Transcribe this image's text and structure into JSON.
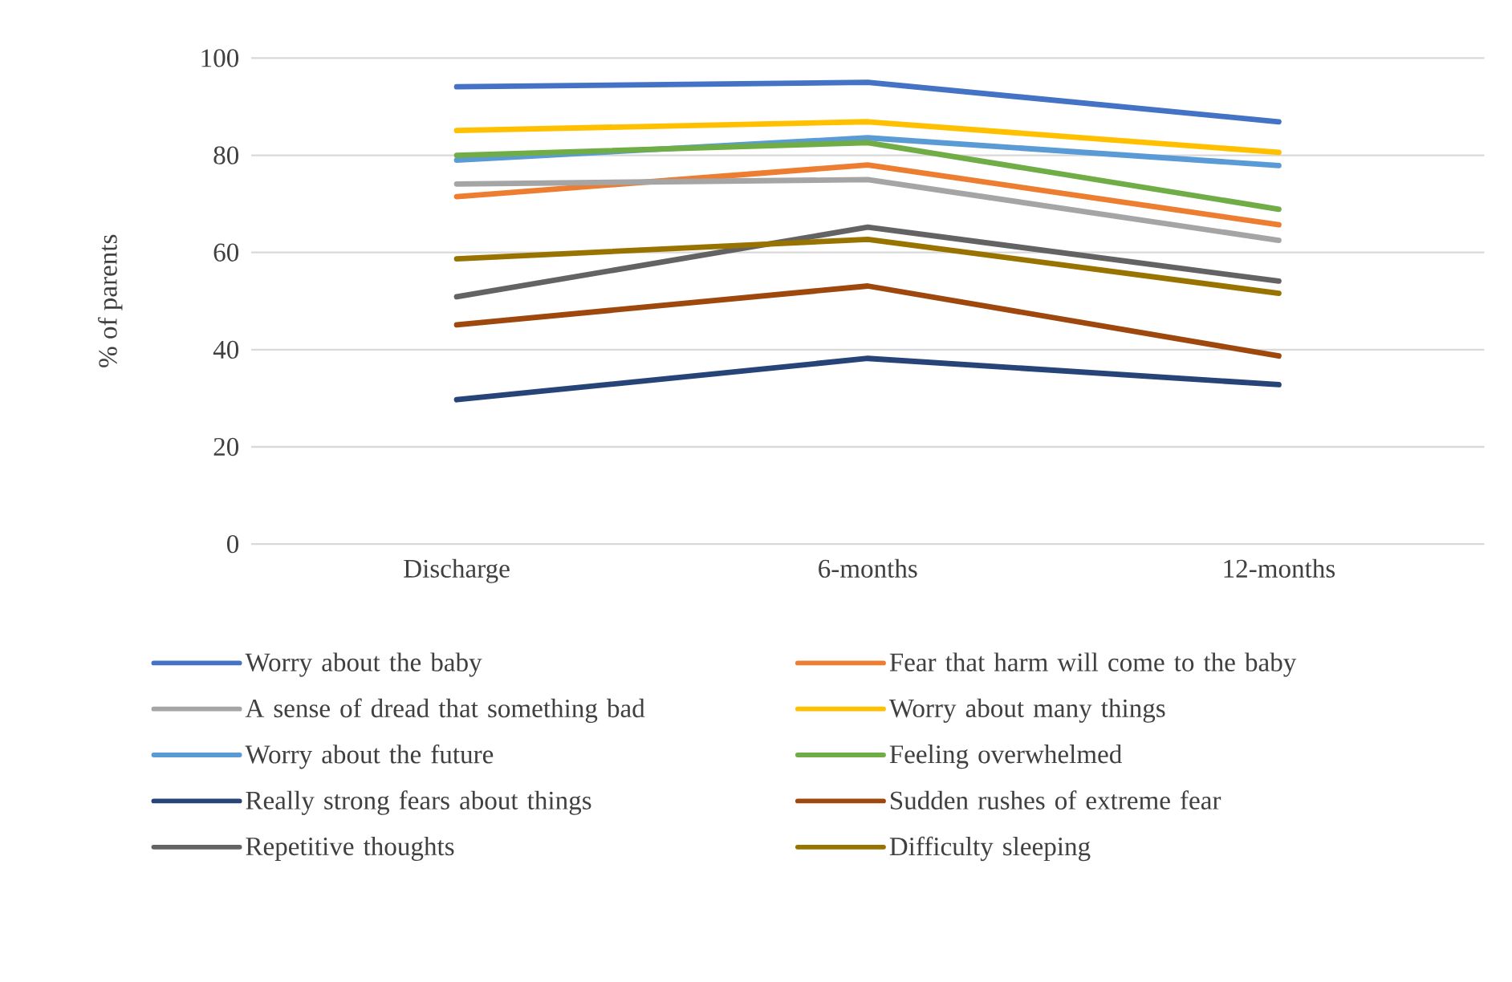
{
  "chart_data": {
    "type": "line",
    "ylabel": "% of parents",
    "categories": [
      "Discharge",
      "6-months",
      "12-months"
    ],
    "ylim": [
      0,
      100
    ],
    "yticks": [
      0,
      20,
      40,
      60,
      80,
      100
    ],
    "grid": "y",
    "legend": "bottom",
    "marker": "none",
    "line_style": "solid",
    "series": [
      {
        "name": "Worry about the baby",
        "color": "#4472c4",
        "values": [
          94.1,
          95,
          86.9
        ]
      },
      {
        "name": "Fear that harm will come to the baby",
        "color": "#ed7d31",
        "values": [
          71.5,
          78,
          65.7
        ]
      },
      {
        "name": "A sense of dread that something bad",
        "color": "#a5a5a5",
        "values": [
          74.1,
          75,
          62.5
        ]
      },
      {
        "name": "Worry about many things",
        "color": "#ffc000",
        "values": [
          85.1,
          86.9,
          80.6
        ]
      },
      {
        "name": "Worry about the future",
        "color": "#5b9bd5",
        "values": [
          79,
          83.6,
          77.9
        ]
      },
      {
        "name": "Feeling overwhelmed",
        "color": "#70ad47",
        "values": [
          80,
          82.6,
          68.9
        ]
      },
      {
        "name": "Really strong fears about things",
        "color": "#264478",
        "values": [
          29.7,
          38.2,
          32.8
        ]
      },
      {
        "name": "Sudden rushes of extreme fear",
        "color": "#9e480e",
        "values": [
          45.1,
          53.1,
          38.7
        ]
      },
      {
        "name": "Repetitive thoughts",
        "color": "#636363",
        "values": [
          50.9,
          65.2,
          54.1
        ]
      },
      {
        "name": "Difficulty sleeping",
        "color": "#997300",
        "values": [
          58.7,
          62.7,
          51.6
        ]
      }
    ]
  }
}
